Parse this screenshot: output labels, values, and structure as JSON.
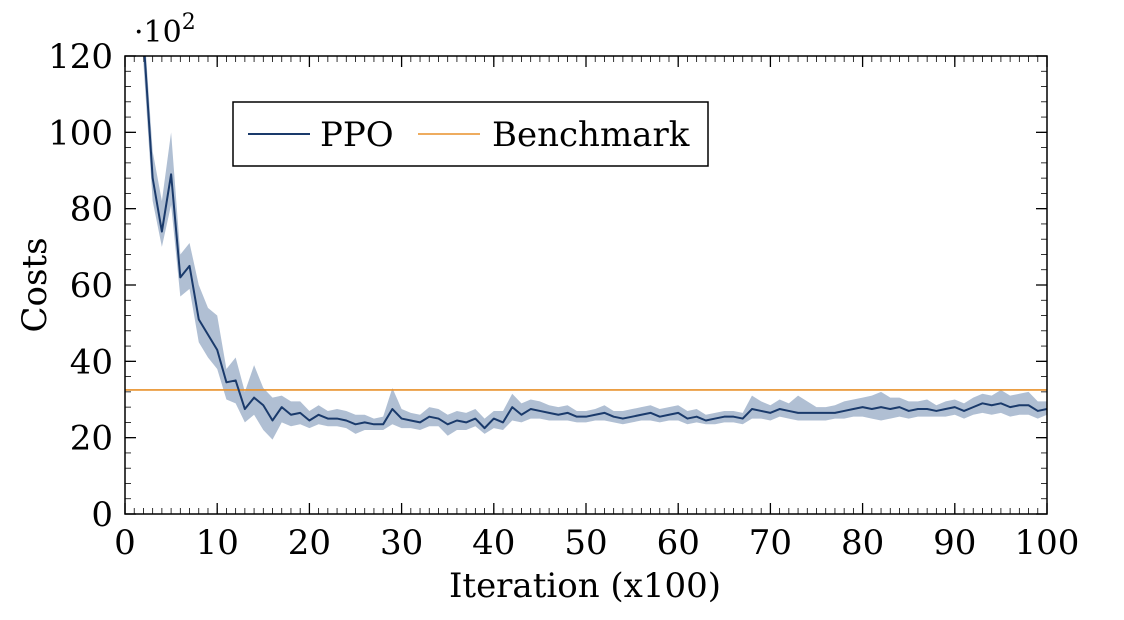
{
  "chart_data": {
    "type": "line",
    "title": "",
    "xlabel": "Iteration (x100)",
    "ylabel": "Costs",
    "y_multiplier": "·10",
    "y_multiplier_exp": "2",
    "xlim": [
      0,
      100
    ],
    "ylim": [
      0,
      120
    ],
    "xticks": [
      0,
      10,
      20,
      30,
      40,
      50,
      60,
      70,
      80,
      90,
      100
    ],
    "yticks": [
      0,
      20,
      40,
      60,
      80,
      100,
      120
    ],
    "legend": {
      "position": "top-left"
    },
    "colors": {
      "ppo": "#1a3a6b",
      "band": "#b0bfd3",
      "benchmark": "#e8902a"
    },
    "series": [
      {
        "name": "PPO",
        "x": [
          2,
          3,
          4,
          5,
          6,
          7,
          8,
          9,
          10,
          11,
          12,
          13,
          14,
          15,
          16,
          17,
          18,
          19,
          20,
          21,
          22,
          23,
          24,
          25,
          26,
          27,
          28,
          29,
          30,
          31,
          32,
          33,
          34,
          35,
          36,
          37,
          38,
          39,
          40,
          41,
          42,
          43,
          44,
          45,
          46,
          47,
          48,
          49,
          50,
          51,
          52,
          53,
          54,
          55,
          56,
          57,
          58,
          59,
          60,
          61,
          62,
          63,
          64,
          65,
          66,
          67,
          68,
          69,
          70,
          71,
          72,
          73,
          74,
          75,
          76,
          77,
          78,
          79,
          80,
          81,
          82,
          83,
          84,
          85,
          86,
          87,
          88,
          89,
          90,
          91,
          92,
          93,
          94,
          95,
          96,
          97,
          98,
          99,
          100
        ],
        "values": [
          125,
          88,
          74,
          89,
          62,
          65,
          51,
          47,
          43,
          34.5,
          35,
          27.5,
          30.5,
          28.5,
          24.5,
          28,
          26,
          26.5,
          24.5,
          26,
          25,
          25,
          24.5,
          23.5,
          24,
          23.5,
          23.5,
          27.5,
          25,
          24.5,
          24,
          25.5,
          25,
          23.5,
          24.5,
          24,
          25,
          22.5,
          25,
          24,
          28,
          26,
          27.5,
          27,
          26.5,
          26,
          26.5,
          25.5,
          25.5,
          26,
          26.5,
          25.5,
          25,
          25.5,
          26,
          26.5,
          25.5,
          26,
          26.5,
          25,
          25.5,
          24.5,
          25,
          25.5,
          25.5,
          25,
          27.5,
          27,
          26.5,
          27.5,
          27,
          26.5,
          26.5,
          26.5,
          26.5,
          26.5,
          27,
          27.5,
          28,
          27.5,
          28,
          27.5,
          28,
          27,
          27.5,
          27.5,
          27,
          27.5,
          28,
          27,
          28,
          29,
          28.5,
          29,
          28,
          28.5,
          28.5,
          27,
          27.5
        ],
        "lower": [
          118,
          82,
          70,
          81,
          57,
          59,
          45,
          41,
          38,
          30,
          29,
          24,
          26,
          22,
          19.5,
          24,
          23,
          23.5,
          22.5,
          23.5,
          23,
          23,
          22.5,
          21,
          22,
          22,
          22,
          23.5,
          22.5,
          22.5,
          22,
          23,
          23,
          20.5,
          22,
          22,
          23,
          21,
          22.5,
          22,
          24.5,
          24,
          25,
          25,
          24.5,
          24.5,
          24.5,
          24,
          24,
          24.5,
          24.5,
          24,
          23.5,
          24,
          24.5,
          24.5,
          24,
          24.5,
          24.5,
          23.5,
          24,
          23.5,
          23.5,
          24,
          24,
          23.5,
          25,
          25,
          24.5,
          25.5,
          25,
          24.5,
          24.5,
          24.5,
          24.5,
          25,
          25,
          25.5,
          25.5,
          25,
          24.5,
          25,
          25.5,
          25,
          25.5,
          25.5,
          25.5,
          25.5,
          26,
          25,
          26,
          26.5,
          26,
          26.5,
          25.5,
          26,
          26,
          25,
          26
        ],
        "upper": [
          130,
          95,
          82,
          100,
          68,
          71,
          60,
          54,
          52,
          38,
          41,
          32,
          39,
          33,
          30.5,
          31,
          29.5,
          29.5,
          27,
          28.5,
          27,
          27.5,
          27,
          26,
          26,
          25,
          25.5,
          33,
          27.5,
          26.5,
          26,
          28,
          27.5,
          26,
          27,
          26.5,
          27.5,
          25,
          27,
          27,
          31.5,
          29,
          30,
          29.5,
          28.5,
          28,
          28.5,
          27,
          27,
          27.5,
          28.5,
          27,
          27,
          27.5,
          28,
          28.5,
          27.5,
          28,
          28.5,
          27,
          27.5,
          26,
          26.5,
          27,
          27,
          26.5,
          31,
          29.5,
          28.5,
          30,
          29,
          31,
          29.5,
          28,
          28,
          28.5,
          29.5,
          30,
          30.5,
          31,
          32,
          30.5,
          30.5,
          29.5,
          29.5,
          30,
          28.5,
          29.5,
          30,
          29,
          30.5,
          31.5,
          31,
          32.5,
          31,
          31.5,
          32,
          29.5,
          29.5
        ]
      },
      {
        "name": "Benchmark",
        "x": [
          0,
          100
        ],
        "values": [
          32.5,
          32.5
        ]
      }
    ]
  }
}
